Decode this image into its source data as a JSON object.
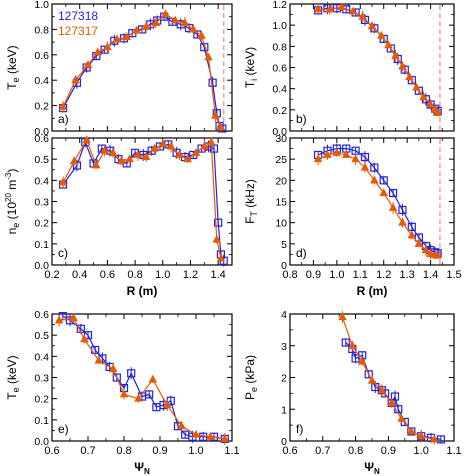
{
  "colors": {
    "blue": "#2222dd",
    "orange": "#e85a00",
    "dashed": "#f4a0a0",
    "axis": "#000000"
  },
  "chart_data": [
    {
      "id": "a",
      "type": "scatter",
      "panel_label": "a)",
      "ylabel": "T",
      "ylabel_sub": "e",
      "ylabel_unit": " (keV)",
      "xlim": [
        0.2,
        1.5
      ],
      "ylim": [
        0.0,
        1.0
      ],
      "xticks": [
        0.2,
        0.4,
        0.6,
        0.8,
        1.0,
        1.2,
        1.4
      ],
      "xticklabels": [
        "",
        "",
        "",
        "",
        "",
        "",
        ""
      ],
      "yticks": [
        0.0,
        0.2,
        0.4,
        0.6,
        0.8,
        1.0
      ],
      "yticklabels": [
        "0.0",
        "0.2",
        "0.4",
        "0.6",
        "0.8",
        "1.0"
      ],
      "vline": 1.44,
      "legend": [
        "127318",
        "127317"
      ],
      "series": [
        {
          "name": "127318",
          "color": "blue",
          "marker": "square",
          "x": [
            0.28,
            0.38,
            0.45,
            0.52,
            0.58,
            0.65,
            0.72,
            0.78,
            0.85,
            0.91,
            0.96,
            1.01,
            1.07,
            1.13,
            1.19,
            1.25,
            1.3,
            1.36,
            1.39,
            1.41,
            1.43
          ],
          "y": [
            0.18,
            0.38,
            0.5,
            0.59,
            0.64,
            0.71,
            0.73,
            0.77,
            0.8,
            0.84,
            0.87,
            0.9,
            0.86,
            0.84,
            0.81,
            0.76,
            0.66,
            0.38,
            0.14,
            0.04,
            0.02
          ]
        },
        {
          "name": "127317",
          "color": "orange",
          "marker": "triangle",
          "x": [
            0.28,
            0.37,
            0.46,
            0.53,
            0.6,
            0.67,
            0.74,
            0.81,
            0.88,
            0.95,
            1.02,
            1.09,
            1.16,
            1.22,
            1.28,
            1.33,
            1.38,
            1.42
          ],
          "y": [
            0.19,
            0.4,
            0.52,
            0.62,
            0.66,
            0.72,
            0.74,
            0.79,
            0.82,
            0.85,
            0.92,
            0.87,
            0.85,
            0.8,
            0.75,
            0.58,
            0.12,
            0.03
          ]
        }
      ]
    },
    {
      "id": "b",
      "type": "scatter",
      "panel_label": "b)",
      "ylabel": "T",
      "ylabel_sub": "i",
      "ylabel_unit": " (keV)",
      "xlim": [
        0.8,
        1.5
      ],
      "ylim": [
        0.0,
        1.2
      ],
      "xticks": [
        0.8,
        0.9,
        1.0,
        1.1,
        1.2,
        1.3,
        1.4,
        1.5
      ],
      "xticklabels": [
        "",
        "",
        "",
        "",
        "",
        "",
        "",
        ""
      ],
      "yticks": [
        0.0,
        0.2,
        0.4,
        0.6,
        0.8,
        1.0,
        1.2
      ],
      "yticklabels": [
        "0.0",
        "0.2",
        "0.4",
        "0.6",
        "0.8",
        "1.0",
        "1.2"
      ],
      "vline": 1.44,
      "series": [
        {
          "name": "127318",
          "color": "blue",
          "marker": "square",
          "x": [
            0.92,
            0.96,
            1.0,
            1.04,
            1.08,
            1.12,
            1.16,
            1.2,
            1.23,
            1.26,
            1.29,
            1.32,
            1.35,
            1.38,
            1.4,
            1.42,
            1.43
          ],
          "y": [
            1.14,
            1.16,
            1.16,
            1.15,
            1.12,
            1.05,
            0.97,
            0.87,
            0.78,
            0.68,
            0.58,
            0.48,
            0.38,
            0.3,
            0.25,
            0.21,
            0.19
          ]
        },
        {
          "name": "127317",
          "color": "orange",
          "marker": "triangle",
          "x": [
            0.92,
            0.97,
            1.02,
            1.07,
            1.11,
            1.15,
            1.19,
            1.22,
            1.25,
            1.28,
            1.31,
            1.34,
            1.37,
            1.4,
            1.42,
            1.43
          ],
          "y": [
            1.15,
            1.15,
            1.17,
            1.13,
            1.08,
            0.99,
            0.9,
            0.81,
            0.71,
            0.61,
            0.51,
            0.41,
            0.32,
            0.25,
            0.2,
            0.17
          ]
        }
      ]
    },
    {
      "id": "c",
      "type": "scatter",
      "panel_label": "c)",
      "ylabel": "n",
      "ylabel_sub": "e",
      "ylabel_unit": " (10",
      "ylabel_sup": "20",
      "ylabel_unit2": " m",
      "ylabel_sup2": "-3",
      "ylabel_close": ")",
      "xlim": [
        0.2,
        1.5
      ],
      "ylim": [
        0.0,
        0.6
      ],
      "xticks": [
        0.2,
        0.4,
        0.6,
        0.8,
        1.0,
        1.2,
        1.4
      ],
      "xticklabels": [
        "0.2",
        "0.4",
        "0.6",
        "0.8",
        "1.0",
        "1.2",
        "1.4"
      ],
      "yticks": [
        0.0,
        0.1,
        0.2,
        0.3,
        0.4,
        0.5,
        0.6
      ],
      "yticklabels": [
        "0.0",
        "0.1",
        "0.2",
        "0.3",
        "0.4",
        "0.5",
        "0.6"
      ],
      "xlabel": "R (m)",
      "series": [
        {
          "name": "127318",
          "color": "blue",
          "marker": "square",
          "x": [
            0.28,
            0.38,
            0.44,
            0.5,
            0.56,
            0.62,
            0.68,
            0.74,
            0.8,
            0.86,
            0.92,
            0.98,
            1.04,
            1.1,
            1.16,
            1.22,
            1.28,
            1.33,
            1.37,
            1.4,
            1.42,
            1.44
          ],
          "y": [
            0.38,
            0.47,
            0.58,
            0.48,
            0.55,
            0.54,
            0.5,
            0.48,
            0.53,
            0.52,
            0.54,
            0.56,
            0.57,
            0.53,
            0.51,
            0.52,
            0.55,
            0.56,
            0.55,
            0.2,
            0.05,
            0.02
          ]
        },
        {
          "name": "127317",
          "color": "orange",
          "marker": "triangle",
          "x": [
            0.28,
            0.36,
            0.45,
            0.52,
            0.58,
            0.64,
            0.7,
            0.76,
            0.82,
            0.88,
            0.94,
            1.0,
            1.06,
            1.12,
            1.18,
            1.24,
            1.3,
            1.35,
            1.39,
            1.42
          ],
          "y": [
            0.39,
            0.49,
            0.59,
            0.47,
            0.54,
            0.53,
            0.49,
            0.5,
            0.52,
            0.51,
            0.55,
            0.57,
            0.56,
            0.52,
            0.5,
            0.53,
            0.56,
            0.58,
            0.12,
            0.03
          ]
        }
      ]
    },
    {
      "id": "d",
      "type": "scatter",
      "panel_label": "d)",
      "ylabel": "F",
      "ylabel_sub": "T",
      "ylabel_unit": " (kHz)",
      "xlim": [
        0.8,
        1.5
      ],
      "ylim": [
        0,
        30
      ],
      "xticks": [
        0.8,
        0.9,
        1.0,
        1.1,
        1.2,
        1.3,
        1.4,
        1.5
      ],
      "xticklabels": [
        "0.8",
        "0.9",
        "1.0",
        "1.1",
        "1.2",
        "1.3",
        "1.4",
        "1.5"
      ],
      "yticks": [
        0,
        5,
        10,
        15,
        20,
        25,
        30
      ],
      "yticklabels": [
        "0",
        "5",
        "10",
        "15",
        "20",
        "25",
        "30"
      ],
      "xlabel": "R (m)",
      "vline": 1.44,
      "series": [
        {
          "name": "127318",
          "color": "blue",
          "marker": "square",
          "x": [
            0.92,
            0.96,
            1.0,
            1.04,
            1.08,
            1.12,
            1.16,
            1.2,
            1.24,
            1.28,
            1.32,
            1.35,
            1.38,
            1.4,
            1.42,
            1.43
          ],
          "y": [
            26,
            27,
            27.5,
            27.5,
            27,
            25.5,
            23,
            20,
            17,
            13,
            9,
            6.5,
            4.5,
            3.5,
            3,
            2.8
          ]
        },
        {
          "name": "127317",
          "color": "orange",
          "marker": "triangle",
          "x": [
            0.92,
            0.96,
            1.0,
            1.04,
            1.08,
            1.12,
            1.16,
            1.2,
            1.24,
            1.28,
            1.32,
            1.35,
            1.38,
            1.4,
            1.42,
            1.43
          ],
          "y": [
            25,
            26,
            26.5,
            26,
            25,
            23,
            20,
            17,
            13.5,
            10,
            7,
            5,
            3.5,
            2.6,
            2.3,
            2.2
          ]
        }
      ]
    },
    {
      "id": "e",
      "type": "scatter",
      "panel_label": "e)",
      "ylabel": "T",
      "ylabel_sub": "e",
      "ylabel_unit": " (keV)",
      "xlim": [
        0.6,
        1.1
      ],
      "ylim": [
        0.0,
        0.6
      ],
      "xticks": [
        0.6,
        0.7,
        0.8,
        0.9,
        1.0,
        1.1
      ],
      "xticklabels": [
        "0.6",
        "0.7",
        "0.8",
        "0.9",
        "1.0",
        "1.1"
      ],
      "yticks": [
        0.0,
        0.1,
        0.2,
        0.3,
        0.4,
        0.5,
        0.6
      ],
      "yticklabels": [
        "0.0",
        "0.1",
        "0.2",
        "0.3",
        "0.4",
        "0.5",
        "0.6"
      ],
      "xlabel": "Ψ",
      "xlabel_sub": "N",
      "series": [
        {
          "name": "127318",
          "color": "blue",
          "marker": "square",
          "x": [
            0.63,
            0.65,
            0.68,
            0.7,
            0.72,
            0.74,
            0.76,
            0.78,
            0.8,
            0.82,
            0.85,
            0.87,
            0.89,
            0.91,
            0.93,
            0.95,
            0.97,
            0.99,
            1.02,
            1.05,
            1.08
          ],
          "y": [
            0.59,
            0.57,
            0.53,
            0.5,
            0.43,
            0.39,
            0.35,
            0.3,
            0.25,
            0.32,
            0.21,
            0.22,
            0.16,
            0.17,
            0.19,
            0.07,
            0.03,
            0.02,
            0.02,
            0.02,
            0.01
          ]
        },
        {
          "name": "127317",
          "color": "orange",
          "marker": "triangle",
          "x": [
            0.62,
            0.66,
            0.69,
            0.73,
            0.77,
            0.8,
            0.84,
            0.88,
            0.92,
            0.96,
            1.0,
            1.04,
            1.08
          ],
          "y": [
            0.57,
            0.58,
            0.48,
            0.38,
            0.34,
            0.22,
            0.2,
            0.29,
            0.17,
            0.07,
            0.03,
            0.02,
            0.01
          ]
        }
      ]
    },
    {
      "id": "f",
      "type": "scatter",
      "panel_label": "f)",
      "ylabel": "P",
      "ylabel_sub": "e",
      "ylabel_unit": " (kPa)",
      "xlim": [
        0.6,
        1.1
      ],
      "ylim": [
        0,
        4
      ],
      "xticks": [
        0.6,
        0.7,
        0.8,
        0.9,
        1.0,
        1.1
      ],
      "xticklabels": [
        "0.6",
        "0.7",
        "0.8",
        "0.9",
        "1.0",
        "1.1"
      ],
      "yticks": [
        0,
        1,
        2,
        3,
        4
      ],
      "yticklabels": [
        "0",
        "1",
        "2",
        "3",
        "4"
      ],
      "xlabel": "Ψ",
      "xlabel_sub": "N",
      "series": [
        {
          "name": "127318",
          "color": "blue",
          "marker": "square",
          "x": [
            0.77,
            0.79,
            0.8,
            0.82,
            0.84,
            0.86,
            0.88,
            0.89,
            0.91,
            0.92,
            0.93,
            0.95,
            0.97,
            1.0,
            1.03,
            1.06
          ],
          "y": [
            3.1,
            2.9,
            2.6,
            2.7,
            2.1,
            1.7,
            1.6,
            1.5,
            1.2,
            1.4,
            1.0,
            0.6,
            0.3,
            0.15,
            0.1,
            0.05
          ]
        },
        {
          "name": "127317",
          "color": "orange",
          "marker": "triangle",
          "x": [
            0.76,
            0.79,
            0.82,
            0.85,
            0.88,
            0.91,
            0.94,
            0.97,
            1.0,
            1.04
          ],
          "y": [
            3.9,
            3.0,
            2.5,
            1.9,
            1.6,
            1.2,
            0.7,
            0.3,
            0.15,
            0.05
          ]
        }
      ]
    }
  ]
}
